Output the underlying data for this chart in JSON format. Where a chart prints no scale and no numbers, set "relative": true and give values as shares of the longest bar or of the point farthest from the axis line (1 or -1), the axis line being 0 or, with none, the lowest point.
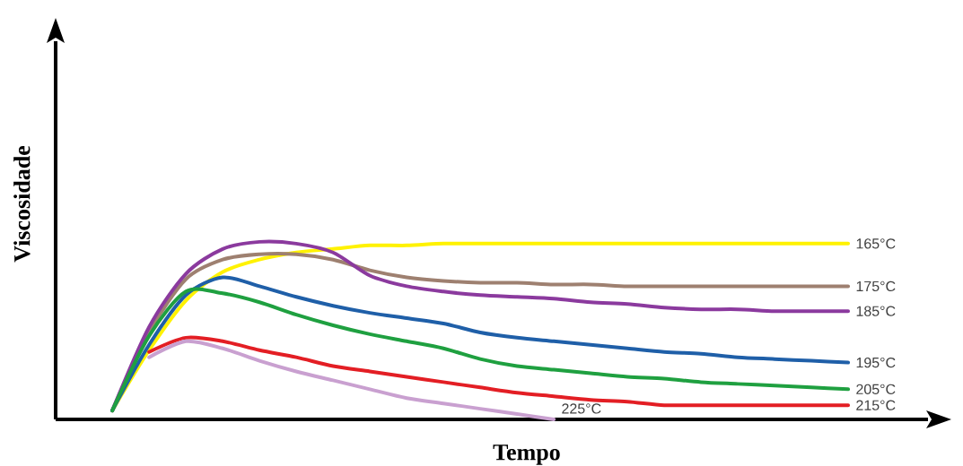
{
  "chart_data": {
    "type": "line",
    "relative": true,
    "xlabel": "Tempo",
    "ylabel": "Viscosidade",
    "categories": [
      null,
      null,
      null,
      null,
      null,
      null,
      null,
      null,
      null,
      null,
      null,
      null,
      null,
      null,
      null,
      null,
      null,
      null,
      null,
      null,
      null
    ],
    "series": [
      {
        "name": "165°C",
        "color": "#fff200",
        "values": [
          0.05,
          0.39,
          0.67,
          0.83,
          0.9,
          0.94,
          0.96,
          0.98,
          0.98,
          0.99,
          0.99,
          0.99,
          0.99,
          0.99,
          0.99,
          0.99,
          0.99,
          0.99,
          0.99,
          0.99,
          0.99
        ]
      },
      {
        "name": "175°C",
        "color": "#9e8070",
        "values": [
          0.05,
          0.49,
          0.79,
          0.9,
          0.93,
          0.93,
          0.9,
          0.84,
          0.8,
          0.78,
          0.77,
          0.77,
          0.76,
          0.76,
          0.75,
          0.75,
          0.75,
          0.75,
          0.75,
          0.75,
          0.75
        ]
      },
      {
        "name": "185°C",
        "color": "#8b3a9e",
        "values": [
          0.05,
          0.52,
          0.82,
          0.96,
          1.0,
          0.99,
          0.94,
          0.81,
          0.75,
          0.72,
          0.7,
          0.69,
          0.68,
          0.66,
          0.65,
          0.63,
          0.62,
          0.62,
          0.61,
          0.61,
          0.61
        ]
      },
      {
        "name": "195°C",
        "color": "#1f5fa8",
        "values": [
          0.05,
          0.42,
          0.7,
          0.8,
          0.75,
          0.69,
          0.64,
          0.6,
          0.57,
          0.54,
          0.49,
          0.46,
          0.44,
          0.42,
          0.4,
          0.38,
          0.37,
          0.35,
          0.34,
          0.33,
          0.32
        ]
      },
      {
        "name": "205°C",
        "color": "#1fa040",
        "values": [
          0.05,
          0.47,
          0.72,
          0.71,
          0.66,
          0.59,
          0.53,
          0.48,
          0.44,
          0.4,
          0.34,
          0.3,
          0.28,
          0.26,
          0.24,
          0.23,
          0.21,
          0.2,
          0.19,
          0.18,
          0.17
        ]
      },
      {
        "name": "215°C",
        "color": "#e31e24",
        "values": [
          null,
          0.38,
          0.46,
          0.44,
          0.39,
          0.35,
          0.3,
          0.27,
          0.24,
          0.21,
          0.18,
          0.15,
          0.13,
          0.11,
          0.1,
          0.08,
          0.08,
          0.08,
          0.08,
          0.08,
          0.08
        ]
      },
      {
        "name": "225°C",
        "color": "#c9a0d0",
        "values": [
          null,
          0.35,
          0.44,
          0.4,
          0.33,
          0.27,
          0.22,
          0.17,
          0.12,
          0.09,
          0.06,
          0.03,
          0.0,
          null,
          null,
          null,
          null,
          null,
          null,
          null,
          null
        ]
      }
    ]
  }
}
